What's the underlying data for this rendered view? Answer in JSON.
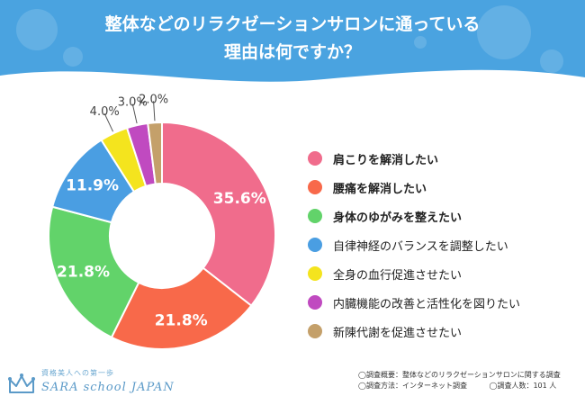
{
  "header": {
    "title_line1": "整体などのリラクゼーションサロンに通っている",
    "title_line2": "理由は何ですか？",
    "background_color": "#4aa3e0"
  },
  "chart_data": {
    "type": "pie",
    "style": "donut",
    "title": "整体などのリラクゼーションサロンに通っている理由は何ですか？",
    "unit": "%",
    "slices": [
      {
        "label": "肩こりを解消したい",
        "value": 35.6,
        "display": "35.6%",
        "color": "#f06c8c",
        "bold": true
      },
      {
        "label": "腰痛を解消したい",
        "value": 21.8,
        "display": "21.8%",
        "color": "#f8694a",
        "bold": true
      },
      {
        "label": "身体のゆがみを整えたい",
        "value": 21.8,
        "display": "21.8%",
        "color": "#62d36a",
        "bold": true
      },
      {
        "label": "自律神経のバランスを調整したい",
        "value": 11.9,
        "display": "11.9%",
        "color": "#4a9ee2",
        "bold": false
      },
      {
        "label": "全身の血行促進させたい",
        "value": 4.0,
        "display": "4.0%",
        "color": "#f4e41e",
        "bold": false
      },
      {
        "label": "内臓機能の改善と活性化を図りたい",
        "value": 3.0,
        "display": "3.0%",
        "color": "#c04ac0",
        "bold": false
      },
      {
        "label": "新陳代謝を促進させたい",
        "value": 2.0,
        "display": "2.0%",
        "color": "#c4a06a",
        "bold": false
      }
    ],
    "legend_position": "right"
  },
  "footer": {
    "survey_overview": "◯調査概要：整体などのリラクゼーションサロンに関する調査",
    "survey_method": "◯調査方法：インターネット調査",
    "survey_count": "◯調査人数：101 人"
  },
  "logo": {
    "tagline": "資格美人への第一歩",
    "name": "SARA school JAPAN",
    "icon": "crown-icon"
  }
}
